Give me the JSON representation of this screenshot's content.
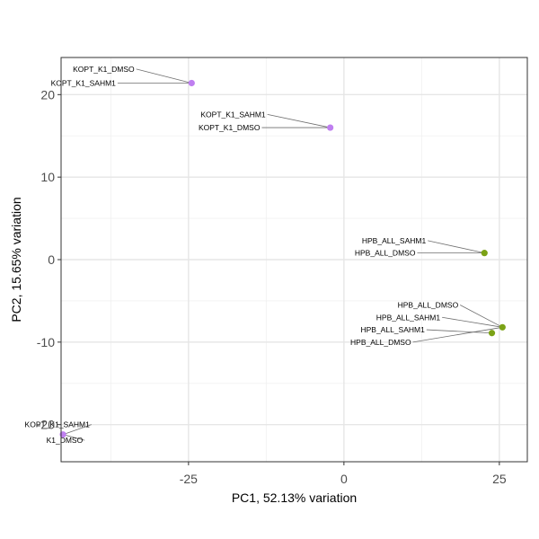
{
  "chart_data": {
    "type": "scatter",
    "xlabel": "PC1, 52.13% variation",
    "ylabel": "PC2, 15.65% variation",
    "xlim": [
      -45.5,
      29.5
    ],
    "ylim": [
      -24.5,
      24.5
    ],
    "xticks": [
      -25,
      0,
      25
    ],
    "xtick_labels": [
      "-25",
      "0",
      "25"
    ],
    "yticks": [
      -20,
      -10,
      0,
      10,
      20
    ],
    "ytick_labels": [
      "-20",
      "-10",
      "0",
      "10",
      "20"
    ],
    "grid": true,
    "colors": {
      "KOPT_K1": "#bf7ff0",
      "HPB_ALL": "#7ba216"
    },
    "points": [
      {
        "x": -24.5,
        "y": 21.4,
        "group": "KOPT_K1"
      },
      {
        "x": -2.2,
        "y": 16.0,
        "group": "KOPT_K1"
      },
      {
        "x": 22.6,
        "y": 0.8,
        "group": "HPB_ALL"
      },
      {
        "x": 25.5,
        "y": -8.2,
        "group": "HPB_ALL"
      },
      {
        "x": 23.8,
        "y": -8.9,
        "group": "HPB_ALL"
      },
      {
        "x": -45.2,
        "y": -21.2,
        "group": "KOPT_K1"
      }
    ],
    "labels": [
      {
        "text": "KOPT_K1_DMSO",
        "x": -33.7,
        "y": 23.1,
        "point": 0
      },
      {
        "text": "KOPT_K1_SAHM1",
        "x": -36.7,
        "y": 21.4,
        "point": 0
      },
      {
        "text": "KOPT_K1_SAHM1",
        "x": -12.6,
        "y": 17.6,
        "point": 1
      },
      {
        "text": "KOPT_K1_DMSO",
        "x": -13.5,
        "y": 16.0,
        "point": 1
      },
      {
        "text": "HPB_ALL_SAHM1",
        "x": 13.2,
        "y": 2.3,
        "point": 2
      },
      {
        "text": "HPB_ALL_DMSO",
        "x": 11.5,
        "y": 0.8,
        "point": 2
      },
      {
        "text": "HPB_ALL_DMSO",
        "x": 18.4,
        "y": -5.5,
        "point": 3
      },
      {
        "text": "HPB_ALL_SAHM1",
        "x": 15.5,
        "y": -7.0,
        "point": 3
      },
      {
        "text": "HPB_ALL_SAHM1",
        "x": 13.0,
        "y": -8.5,
        "point": 4
      },
      {
        "text": "HPB_ALL_DMSO",
        "x": 10.8,
        "y": -10.0,
        "point": 3
      },
      {
        "text": "KOPT_K1_SAHM1",
        "x": -40.9,
        "y": -20.0,
        "point": 5
      },
      {
        "text": "K1_DMSO",
        "x": -42.0,
        "y": -21.9,
        "point": 5
      }
    ]
  }
}
